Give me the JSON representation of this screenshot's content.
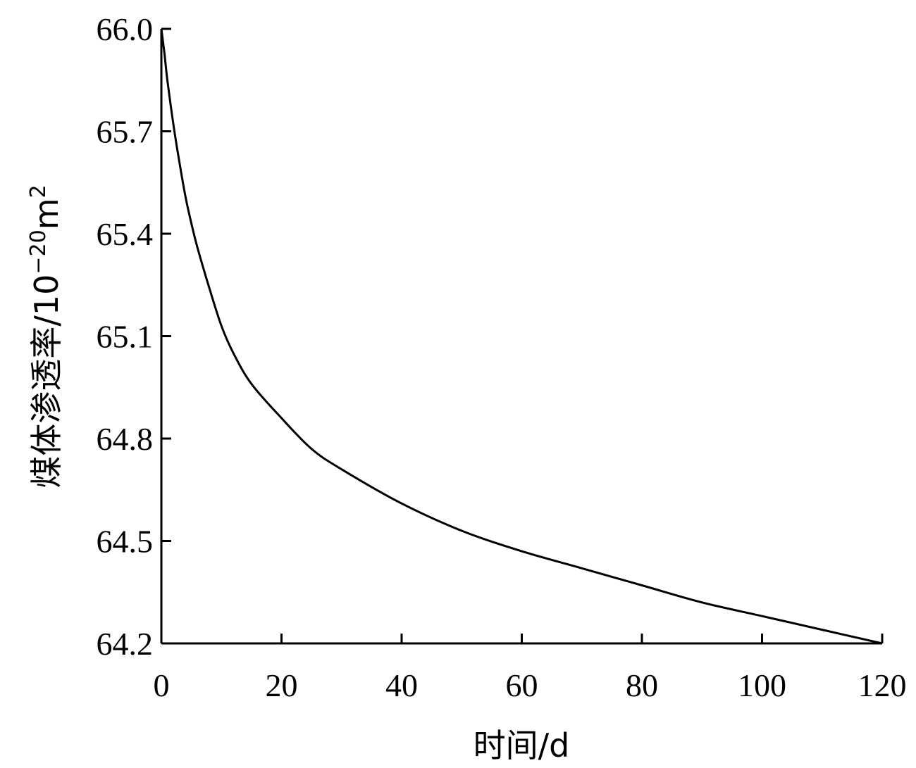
{
  "chart_data": {
    "type": "line",
    "title": "",
    "xlabel": "时间/d",
    "ylabel_main": "煤体渗透率/10",
    "ylabel_exp1": "−20",
    "ylabel_unit": "m",
    "ylabel_exp2": "2",
    "xlim": [
      0,
      120
    ],
    "ylim": [
      64.2,
      66.0
    ],
    "xticks": [
      "0",
      "20",
      "40",
      "60",
      "80",
      "100",
      "120"
    ],
    "yticks": [
      "64.2",
      "64.5",
      "64.8",
      "65.1",
      "65.4",
      "65.7",
      "66.0"
    ],
    "grid": false,
    "series": [
      {
        "x": [
          0,
          0.5,
          1,
          2,
          3,
          4,
          5,
          6,
          8,
          10,
          12,
          15,
          20,
          25,
          30,
          40,
          50,
          60,
          70,
          80,
          90,
          100,
          110,
          120
        ],
        "y": [
          66.0,
          65.93,
          65.85,
          65.72,
          65.61,
          65.51,
          65.43,
          65.36,
          65.24,
          65.13,
          65.05,
          64.96,
          64.86,
          64.77,
          64.71,
          64.61,
          64.53,
          64.47,
          64.42,
          64.37,
          64.32,
          64.28,
          64.24,
          64.2
        ],
        "color": "#000000"
      }
    ]
  }
}
